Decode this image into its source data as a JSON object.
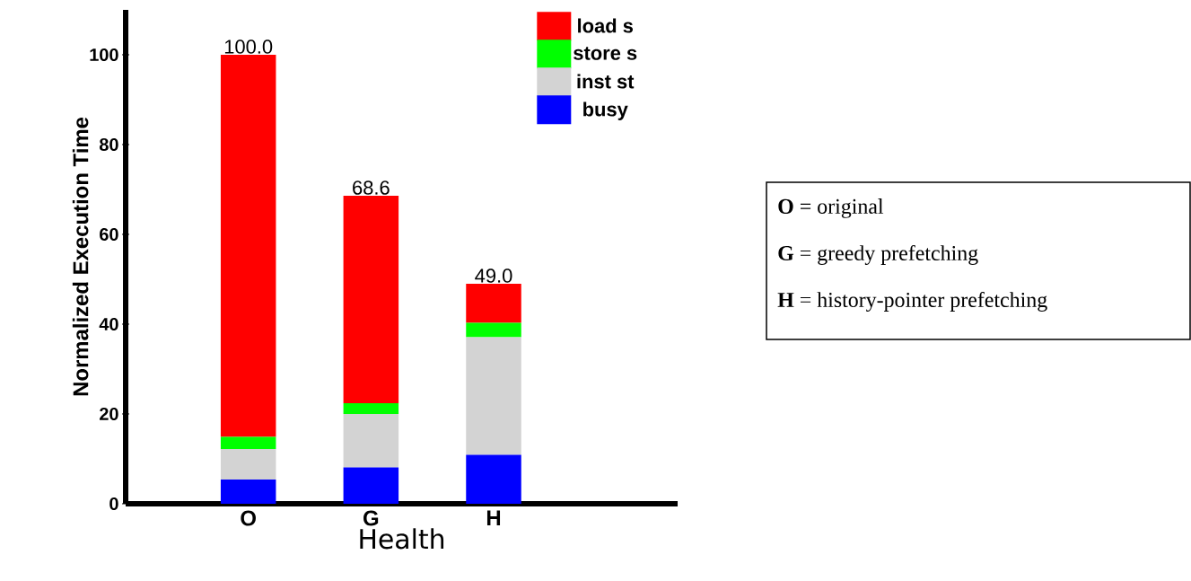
{
  "chart_data": {
    "type": "bar",
    "stacked": true,
    "xlabel": "Health",
    "ylabel": "Normalized Execution Time",
    "categories": [
      "O",
      "G",
      "H"
    ],
    "series": [
      {
        "name": "busy",
        "color": "#0000ff",
        "values": [
          5.4,
          8.1,
          10.9
        ]
      },
      {
        "name": "inst st",
        "color": "#d3d3d3",
        "values": [
          6.8,
          11.9,
          26.2
        ]
      },
      {
        "name": "store s",
        "color": "#00ff00",
        "values": [
          2.7,
          2.4,
          3.2
        ]
      },
      {
        "name": "load s",
        "color": "#ff0000",
        "values": [
          85.1,
          46.2,
          8.7
        ]
      }
    ],
    "totals": [
      "100.0",
      "68.6",
      "49.0"
    ],
    "ylim": [
      0,
      110
    ],
    "yticks": [
      0,
      20,
      40,
      60,
      80,
      100
    ],
    "legend": "top right",
    "annotations": [
      "**O** = original",
      "**G** = greedy prefetching",
      "**H** = history-pointer prefetching"
    ]
  }
}
